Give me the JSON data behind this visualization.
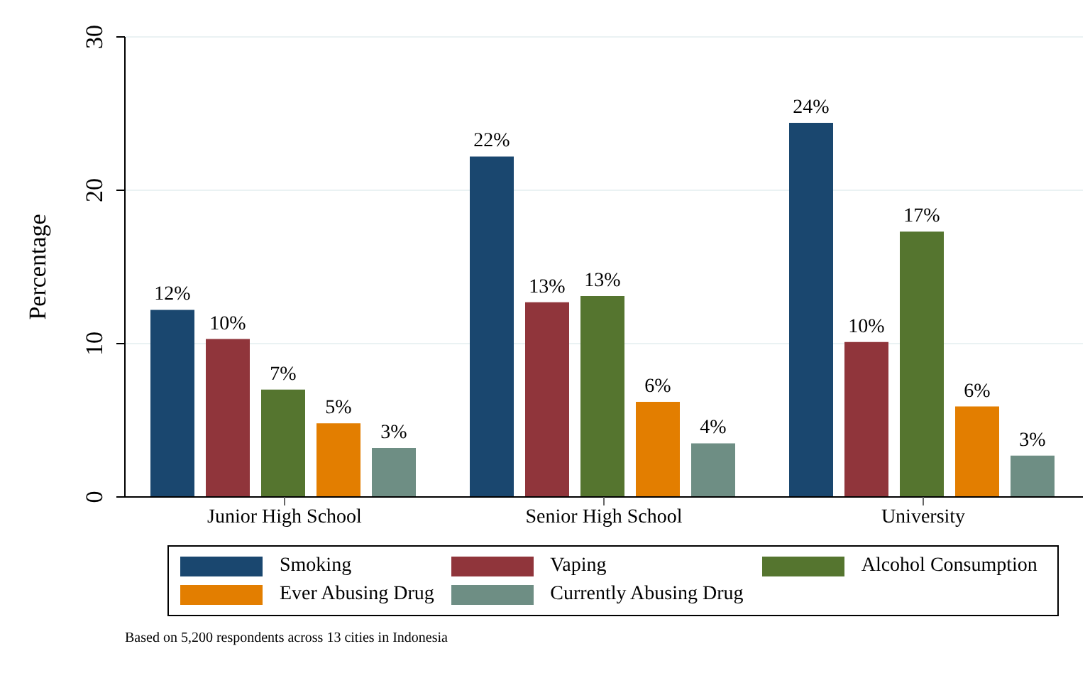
{
  "chart_data": {
    "type": "bar",
    "ylabel": "Percentage",
    "categories": [
      "Junior High School",
      "Senior High School",
      "University"
    ],
    "series": [
      {
        "name": "Smoking",
        "color": "#1a476f",
        "values": [
          12.2,
          22.2,
          24.4
        ],
        "value_labels": [
          "12%",
          "22%",
          "24%"
        ]
      },
      {
        "name": "Vaping",
        "color": "#90353b",
        "values": [
          10.3,
          12.7,
          10.1
        ],
        "value_labels": [
          "10%",
          "13%",
          "10%"
        ]
      },
      {
        "name": "Alcohol Consumption",
        "color": "#55752f",
        "values": [
          7.0,
          13.1,
          17.3
        ],
        "value_labels": [
          "7%",
          "13%",
          "17%"
        ]
      },
      {
        "name": "Ever Abusing Drug",
        "color": "#e37e00",
        "values": [
          4.8,
          6.2,
          5.9
        ],
        "value_labels": [
          "5%",
          "6%",
          "6%"
        ]
      },
      {
        "name": "Currently Abusing Drug",
        "color": "#6e8e84",
        "values": [
          3.2,
          3.5,
          2.7
        ],
        "value_labels": [
          "3%",
          "4%",
          "3%"
        ]
      }
    ],
    "ylim": [
      0,
      30
    ],
    "yticks": [
      0,
      10,
      20,
      30
    ],
    "grid": "y",
    "legend": "bottom",
    "annotations": [
      "Based on 5,200 respondents across 13 cities in Indonesia"
    ]
  }
}
